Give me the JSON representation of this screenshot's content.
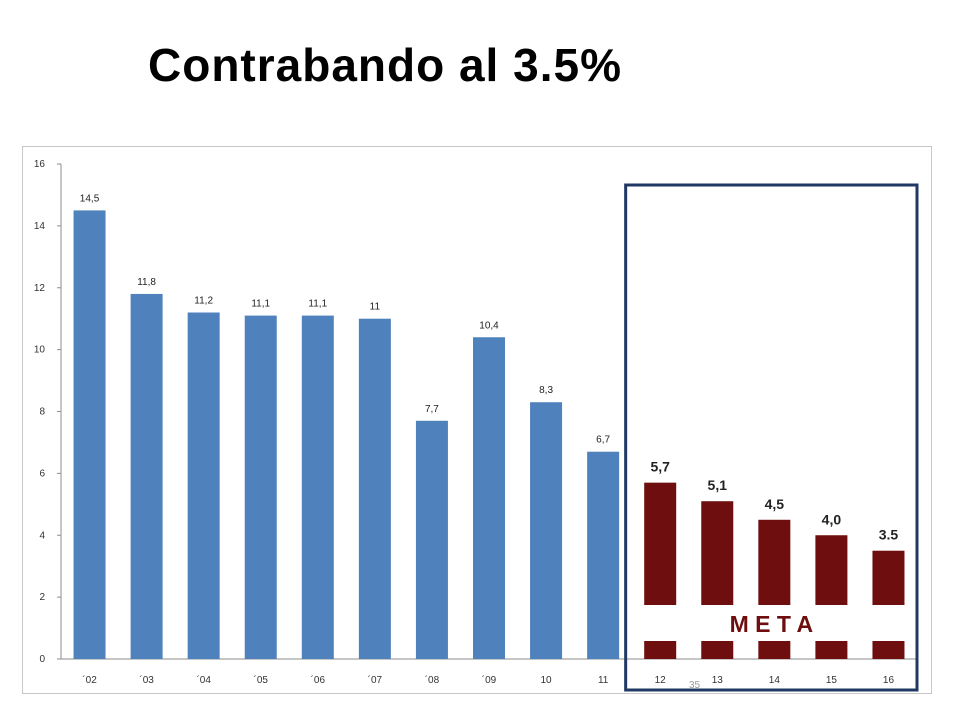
{
  "title": "Contrabando al 3.5%",
  "page_number": "35",
  "colors": {
    "historic": "#4f81bd",
    "goal": "#6e0e0e",
    "goal_box": "#1f3864"
  },
  "chart_data": {
    "type": "bar",
    "categories": [
      "´02",
      "´03",
      "´04",
      "´05",
      "´06",
      "´07",
      "´08",
      "´09",
      "10",
      "11",
      "12",
      "13",
      "14",
      "15",
      "16"
    ],
    "values": [
      14.5,
      11.8,
      11.2,
      11.1,
      11.1,
      11,
      7.7,
      10.4,
      8.3,
      6.7,
      5.7,
      5.1,
      4.5,
      4.0,
      3.5
    ],
    "value_labels": [
      "14,5",
      "11,8",
      "11,2",
      "11,1",
      "11,1",
      "11",
      "7,7",
      "10,4",
      "8,3",
      "6,7",
      "5,7",
      "5,1",
      "4,5",
      "4,0",
      "3.5"
    ],
    "ylim": [
      0,
      16
    ],
    "yticks": [
      "0",
      "2",
      "4",
      "6",
      "8",
      "10",
      "12",
      "14",
      "16"
    ],
    "goal_start_index": 10,
    "goal_label": "M E T A"
  }
}
